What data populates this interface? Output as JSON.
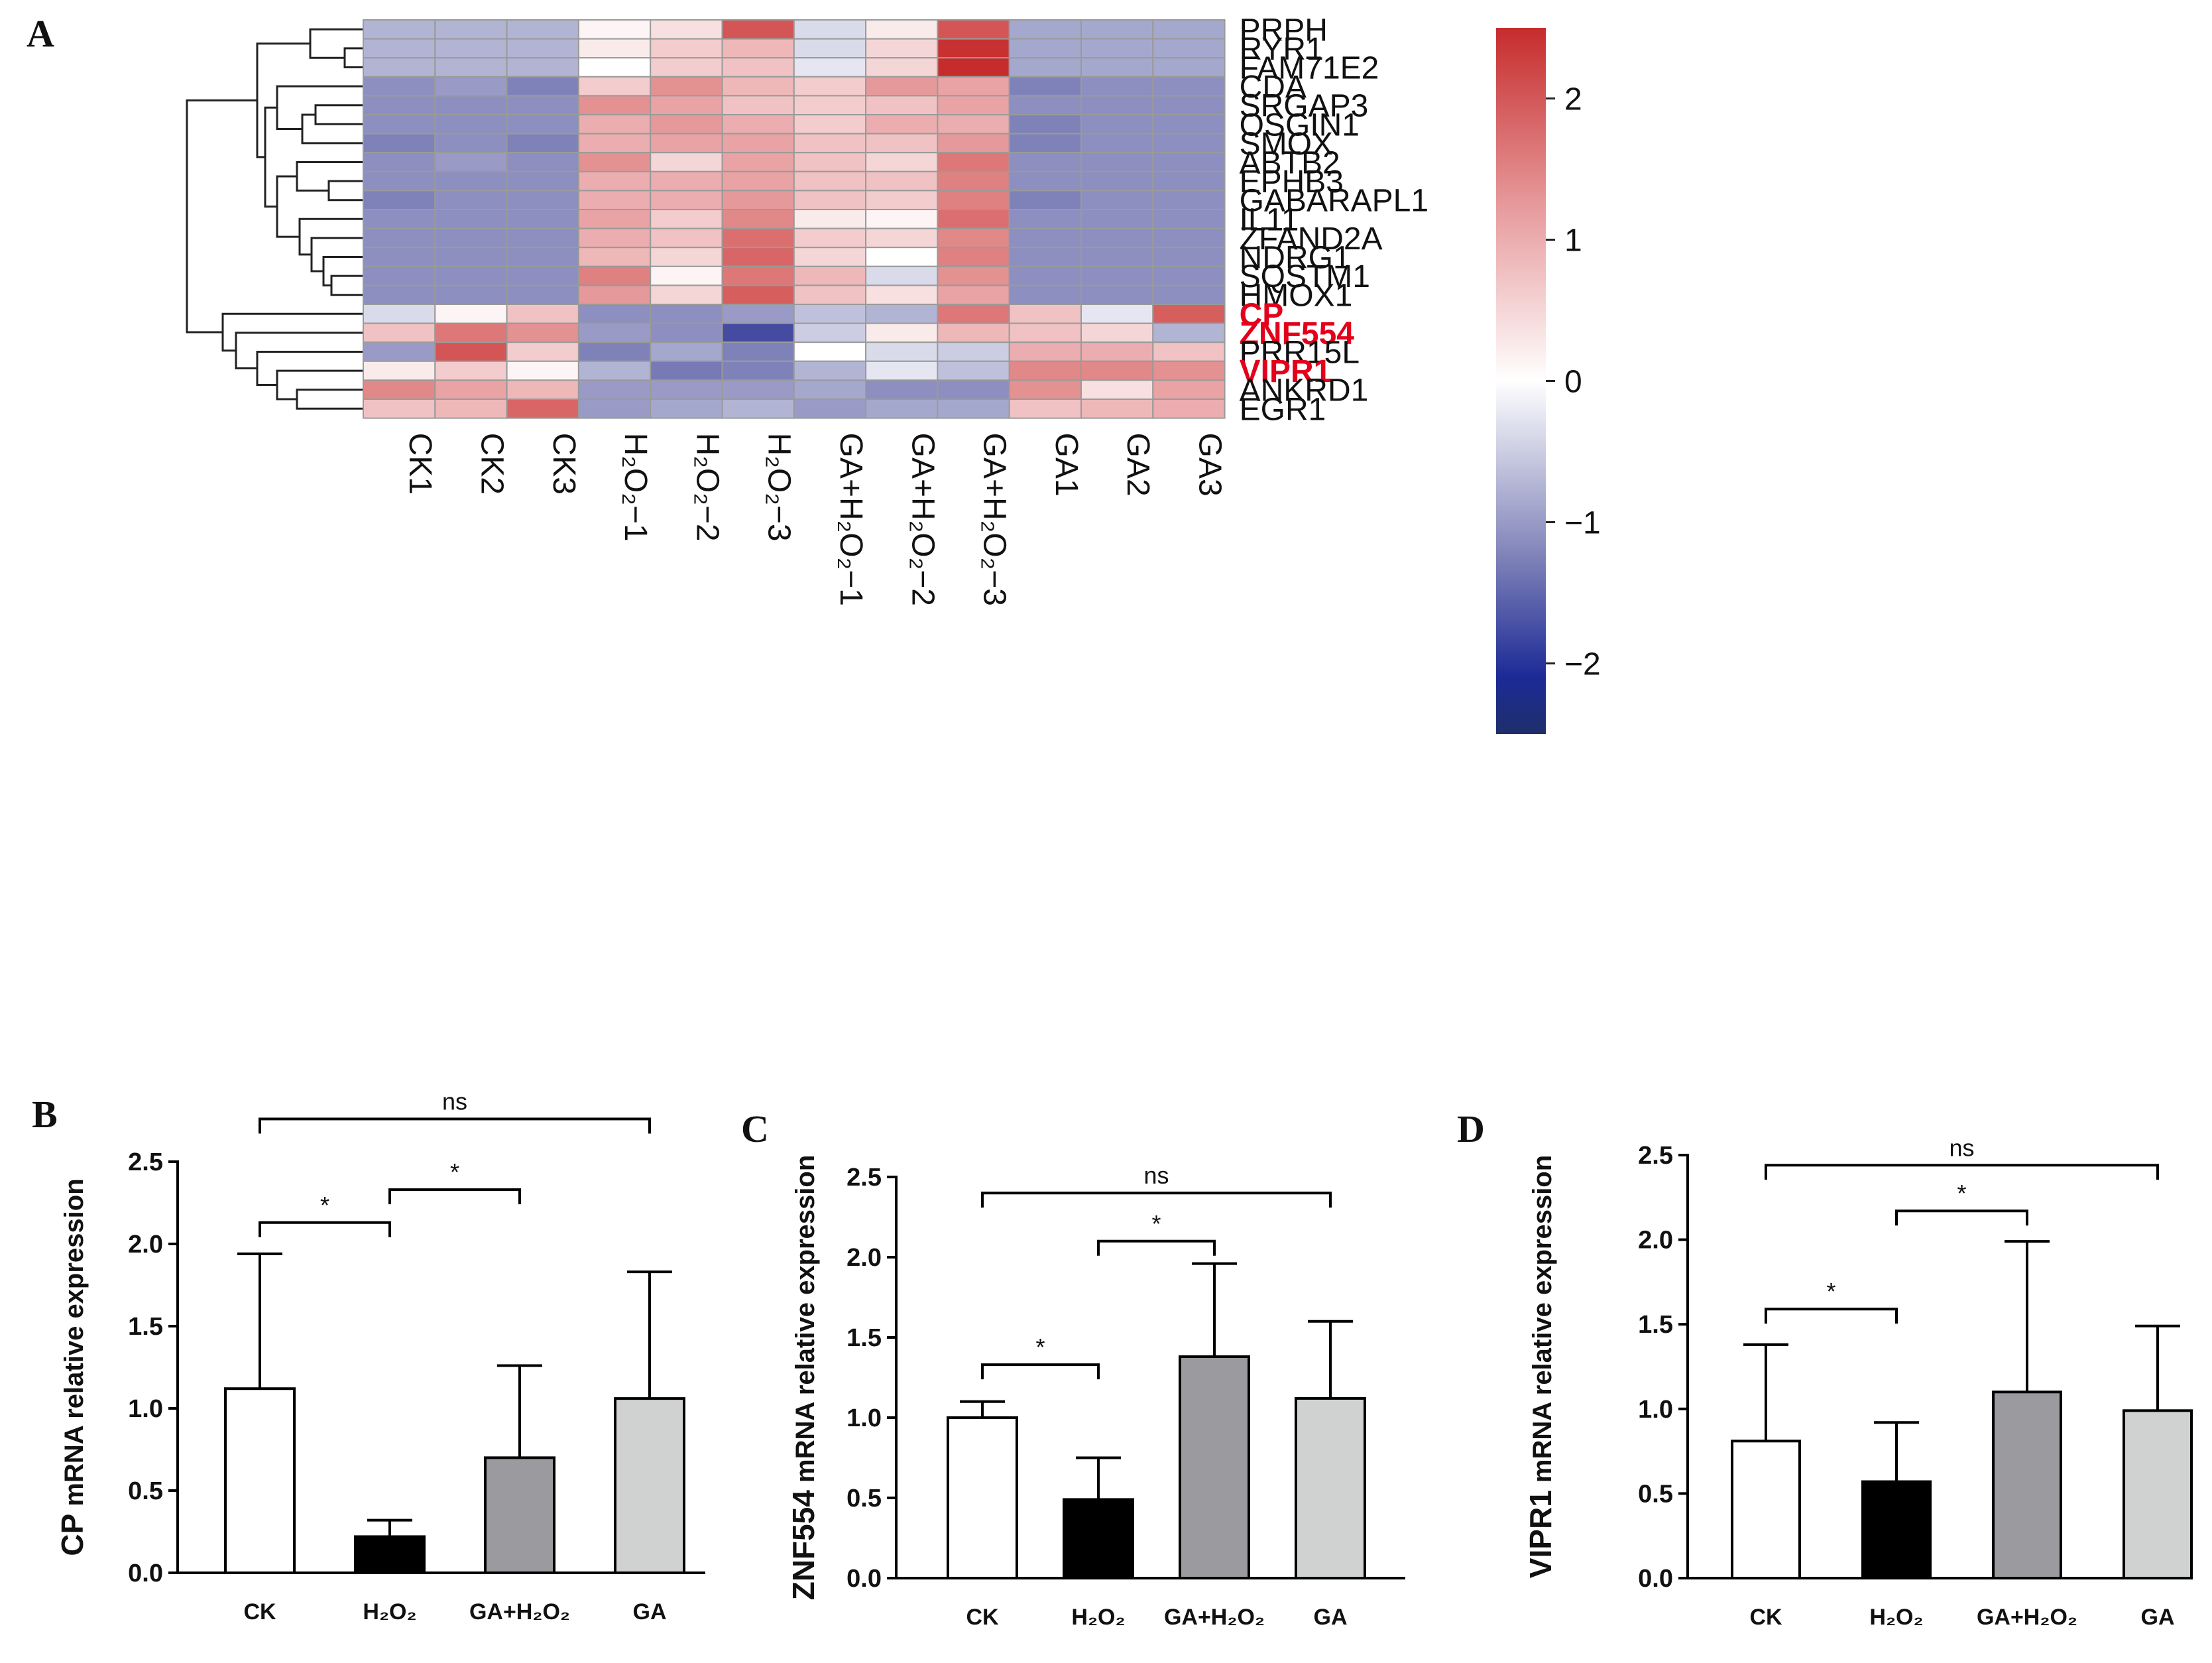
{
  "panels": {
    "a": "A",
    "b": "B",
    "c": "C",
    "d": "D"
  },
  "colors": {
    "low": "#1f2f6b",
    "mid": "#ffffff",
    "high": "#c62c2c",
    "grid": "#9a9a9a"
  },
  "chart_data": [
    {
      "type": "heatmap",
      "panel": "A",
      "columns": [
        "CK1",
        "CK2",
        "CK3",
        "H₂O₂−1",
        "H₂O₂−2",
        "H₂O₂−3",
        "GA+H₂O₂−1",
        "GA+H₂O₂−2",
        "GA+H₂O₂−3",
        "GA1",
        "GA2",
        "GA3"
      ],
      "rows": [
        "PRPH",
        "RYR1",
        "FAM71E2",
        "CDA",
        "SRGAP3",
        "OSGIN1",
        "SMOX",
        "ABTB2",
        "EPHB3",
        "GABARAPL1",
        "IL11",
        "ZFAND2A",
        "NDRG1",
        "SQSTM1",
        "HMOX1",
        "CP",
        "ZNF554",
        "PRR15L",
        "VIPR1",
        "ANKRD1",
        "EGR1"
      ],
      "highlighted_rows": [
        "CP",
        "ZNF554",
        "VIPR1"
      ],
      "values": [
        [
          -0.6,
          -0.6,
          -0.6,
          0.1,
          0.3,
          1.8,
          -0.3,
          0.2,
          1.8,
          -0.7,
          -0.7,
          -0.7
        ],
        [
          -0.6,
          -0.6,
          -0.6,
          0.2,
          0.5,
          0.7,
          -0.3,
          0.4,
          2.4,
          -0.7,
          -0.7,
          -0.7
        ],
        [
          -0.6,
          -0.6,
          -0.6,
          0.0,
          0.5,
          0.6,
          -0.2,
          0.4,
          2.5,
          -0.7,
          -0.7,
          -0.7
        ],
        [
          -0.9,
          -0.8,
          -1.0,
          0.5,
          1.1,
          0.7,
          0.5,
          1.0,
          0.9,
          -1.0,
          -0.9,
          -0.9
        ],
        [
          -0.9,
          -0.9,
          -0.9,
          1.1,
          0.9,
          0.6,
          0.5,
          0.6,
          0.9,
          -0.9,
          -0.9,
          -0.9
        ],
        [
          -0.9,
          -0.9,
          -0.9,
          0.8,
          1.0,
          0.8,
          0.5,
          0.8,
          0.8,
          -1.0,
          -0.9,
          -0.9
        ],
        [
          -1.0,
          -0.9,
          -1.0,
          0.8,
          0.9,
          0.9,
          0.6,
          0.6,
          1.0,
          -1.0,
          -0.9,
          -0.9
        ],
        [
          -0.9,
          -0.8,
          -0.9,
          1.1,
          0.4,
          0.9,
          0.6,
          0.4,
          1.4,
          -0.9,
          -0.9,
          -0.9
        ],
        [
          -0.9,
          -0.9,
          -0.9,
          0.8,
          0.8,
          0.9,
          0.6,
          0.6,
          1.3,
          -0.9,
          -0.9,
          -0.9
        ],
        [
          -1.0,
          -0.9,
          -0.9,
          0.8,
          0.8,
          1.0,
          0.6,
          0.5,
          1.3,
          -1.0,
          -0.9,
          -0.9
        ],
        [
          -0.9,
          -0.9,
          -0.9,
          0.9,
          0.5,
          1.2,
          0.2,
          0.1,
          1.5,
          -0.9,
          -0.9,
          -0.9
        ],
        [
          -0.9,
          -0.9,
          -0.9,
          0.8,
          0.6,
          1.5,
          0.5,
          0.4,
          1.2,
          -0.9,
          -0.9,
          -0.9
        ],
        [
          -0.9,
          -0.9,
          -0.9,
          0.7,
          0.4,
          1.6,
          0.4,
          0.0,
          1.3,
          -0.9,
          -0.9,
          -0.9
        ],
        [
          -0.9,
          -0.9,
          -0.9,
          1.3,
          0.1,
          1.4,
          0.7,
          -0.3,
          1.1,
          -0.9,
          -0.9,
          -0.9
        ],
        [
          -0.9,
          -0.9,
          -0.9,
          1.0,
          0.4,
          1.7,
          0.6,
          0.3,
          0.9,
          -0.9,
          -0.9,
          -0.9
        ],
        [
          -0.3,
          0.1,
          0.6,
          -0.9,
          -0.9,
          -0.8,
          -0.5,
          -0.6,
          1.4,
          0.6,
          -0.2,
          1.7
        ],
        [
          0.6,
          1.4,
          1.1,
          -0.8,
          -0.9,
          -1.7,
          -0.4,
          0.2,
          0.7,
          0.6,
          0.4,
          -0.6
        ],
        [
          -0.8,
          1.8,
          0.5,
          -1.0,
          -0.7,
          -1.0,
          0.0,
          -0.3,
          -0.4,
          0.8,
          0.8,
          0.6
        ],
        [
          0.2,
          0.5,
          0.1,
          -0.6,
          -1.1,
          -1.0,
          -0.6,
          -0.2,
          -0.5,
          1.2,
          1.2,
          1.1
        ],
        [
          1.2,
          0.9,
          0.7,
          -0.8,
          -0.8,
          -0.8,
          -0.7,
          -0.9,
          -0.9,
          1.1,
          0.3,
          0.9
        ],
        [
          0.6,
          0.7,
          1.6,
          -0.8,
          -0.7,
          -0.6,
          -0.8,
          -0.7,
          -0.7,
          0.6,
          0.7,
          0.8
        ]
      ],
      "colorbar": {
        "min": -2.5,
        "max": 2.5,
        "ticks": [
          "2",
          "1",
          "0",
          "−1",
          "−2"
        ],
        "tick_values": [
          2,
          1,
          0,
          -1,
          -2
        ]
      }
    },
    {
      "type": "bar",
      "panel": "B",
      "ylabel_gene": "CP",
      "ylabel_rest": " mRNA relative expression",
      "categories": [
        "CK",
        "H₂O₂",
        "GA+H₂O₂",
        "GA"
      ],
      "values": [
        1.12,
        0.22,
        0.7,
        1.06
      ],
      "errors": [
        0.82,
        0.1,
        0.56,
        0.77
      ],
      "ylim": [
        0,
        2.5
      ],
      "yticks": [
        "0.0",
        "0.5",
        "1.0",
        "1.5",
        "2.0",
        "2.5"
      ],
      "ytick_values": [
        0,
        0.5,
        1,
        1.5,
        2,
        2.5
      ],
      "fills": [
        "#ffffff",
        "#000000",
        "#9b9a9e",
        "#d0d1d1"
      ],
      "brackets": [
        {
          "from": 0,
          "to": 1,
          "label": "*",
          "y": 2.13
        },
        {
          "from": 1,
          "to": 2,
          "label": "*",
          "y": 2.33
        },
        {
          "from": 0,
          "to": 3,
          "label": "ns",
          "y": 2.76
        }
      ]
    },
    {
      "type": "bar",
      "panel": "C",
      "ylabel_gene": "ZNF554",
      "ylabel_rest": " mRNA relative expression",
      "categories": [
        "CK",
        "H₂O₂",
        "GA+H₂O₂",
        "GA"
      ],
      "values": [
        1.0,
        0.49,
        1.38,
        1.12
      ],
      "errors": [
        0.1,
        0.26,
        0.58,
        0.48
      ],
      "ylim": [
        0,
        2.5
      ],
      "yticks": [
        "0.0",
        "0.5",
        "1.0",
        "1.5",
        "2.0",
        "2.5"
      ],
      "ytick_values": [
        0,
        0.5,
        1,
        1.5,
        2,
        2.5
      ],
      "fills": [
        "#ffffff",
        "#000000",
        "#9b9a9e",
        "#d0d1d1"
      ],
      "brackets": [
        {
          "from": 0,
          "to": 1,
          "label": "*",
          "y": 1.33
        },
        {
          "from": 1,
          "to": 2,
          "label": "*",
          "y": 2.1
        },
        {
          "from": 0,
          "to": 3,
          "label": "ns",
          "y": 2.4
        }
      ]
    },
    {
      "type": "bar",
      "panel": "D",
      "ylabel_gene": "VIPR1",
      "ylabel_rest": " mRNA relative expression",
      "categories": [
        "CK",
        "H₂O₂",
        "GA+H₂O₂",
        "GA"
      ],
      "values": [
        0.81,
        0.57,
        1.1,
        0.99
      ],
      "errors": [
        0.57,
        0.35,
        0.89,
        0.5
      ],
      "ylim": [
        0,
        2.5
      ],
      "yticks": [
        "0.0",
        "0.5",
        "1.0",
        "1.5",
        "2.0",
        "2.5"
      ],
      "ytick_values": [
        0,
        0.5,
        1,
        1.5,
        2,
        2.5
      ],
      "fills": [
        "#ffffff",
        "#000000",
        "#9b9a9e",
        "#d0d1d1"
      ],
      "brackets": [
        {
          "from": 0,
          "to": 1,
          "label": "*",
          "y": 1.59
        },
        {
          "from": 1,
          "to": 2,
          "label": "*",
          "y": 2.17
        },
        {
          "from": 0,
          "to": 3,
          "label": "ns",
          "y": 2.44
        }
      ]
    }
  ]
}
